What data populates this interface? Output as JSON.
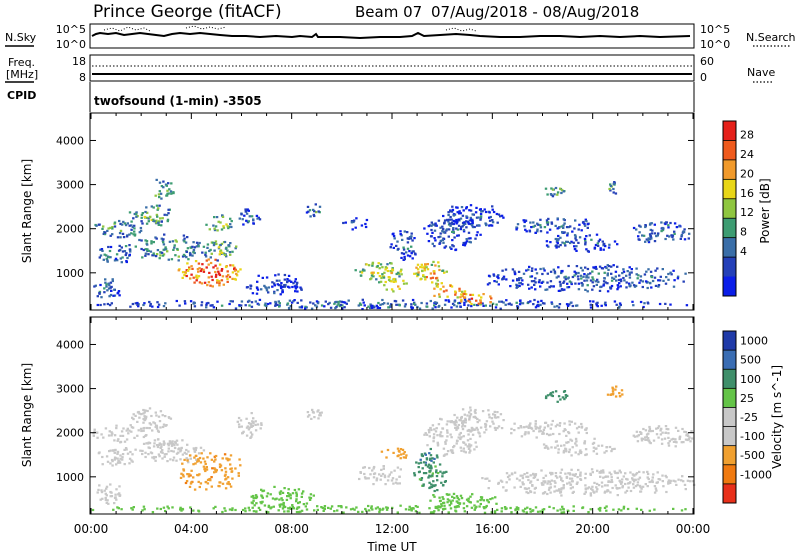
{
  "header": {
    "station": "Prince George (fitACF)",
    "beam": "Beam 07",
    "date_range": "07/Aug/2018 - 08/Aug/2018"
  },
  "noise_panel": {
    "left_label": "N.Sky",
    "right_label": "N.Search",
    "ticks_left": [
      "10^5",
      "10^0"
    ],
    "ticks_right": [
      "10^5",
      "10^0"
    ]
  },
  "freq_panel": {
    "left_label_1": "Freq.",
    "left_label_2": "[MHz]",
    "ticks_left": [
      "18",
      "8"
    ],
    "ticks_right": [
      "60",
      "0"
    ],
    "right_label": "Nave"
  },
  "cpid": {
    "label": "CPID",
    "value": "twofsound (1-min) -3505"
  },
  "power_panel": {
    "ylabel": "Slant Range [km]",
    "yticks": [
      "4000",
      "3000",
      "2000",
      "1000"
    ],
    "colorbar_label": "Power [dB]",
    "colorbar_ticks": [
      "28",
      "24",
      "20",
      "16",
      "12",
      "8",
      "4"
    ],
    "colors": [
      "#0b1ee8",
      "#2440b8",
      "#3a6ea8",
      "#3d9c72",
      "#8fc640",
      "#e8d617",
      "#f19a2b",
      "#ef5a1d",
      "#e5201a"
    ]
  },
  "velocity_panel": {
    "ylabel": "Slant Range [km]",
    "yticks": [
      "4000",
      "3000",
      "2000",
      "1000"
    ],
    "colorbar_label": "Velocity [m s^-1]",
    "colorbar_ticks": [
      "1000",
      "500",
      "100",
      "25",
      "-25",
      "-100",
      "-500",
      "-1000"
    ],
    "colors": [
      "#1f3aa8",
      "#3a6db3",
      "#3f8f6a",
      "#64c448",
      "#c8c8c8",
      "#c8c8c8",
      "#f0a030",
      "#f07a10",
      "#e8301a"
    ]
  },
  "x_axis": {
    "ticks": [
      "00:00",
      "04:00",
      "08:00",
      "12:00",
      "16:00",
      "20:00",
      "00:00"
    ],
    "label": "Time UT"
  },
  "chart_data": [
    {
      "type": "heatmap",
      "title": "Power [dB]",
      "xlabel": "Time UT",
      "ylabel": "Slant Range [km]",
      "xlim_hours": [
        0,
        24
      ],
      "ylim_km": [
        180,
        4600
      ],
      "clim": [
        0,
        30
      ],
      "regions": [
        {
          "t0": 0.0,
          "t1": 2.2,
          "r0": 1800,
          "r1": 2200,
          "v": 12
        },
        {
          "t0": 0.2,
          "t1": 1.8,
          "r0": 1250,
          "r1": 1700,
          "v": 10
        },
        {
          "t0": 0.0,
          "t1": 1.2,
          "r0": 400,
          "r1": 900,
          "v": 9
        },
        {
          "t0": 1.5,
          "t1": 3.2,
          "r0": 2000,
          "r1": 2600,
          "v": 14
        },
        {
          "t0": 2.3,
          "t1": 3.3,
          "r0": 2700,
          "r1": 3150,
          "v": 13
        },
        {
          "t0": 1.6,
          "t1": 4.5,
          "r0": 1300,
          "r1": 1900,
          "v": 13
        },
        {
          "t0": 3.4,
          "t1": 6.0,
          "r0": 700,
          "r1": 1350,
          "v": 26
        },
        {
          "t0": 4.3,
          "t1": 5.8,
          "r0": 1300,
          "r1": 1800,
          "v": 15
        },
        {
          "t0": 4.5,
          "t1": 5.6,
          "r0": 1950,
          "r1": 2350,
          "v": 16
        },
        {
          "t0": 5.8,
          "t1": 6.8,
          "r0": 2000,
          "r1": 2500,
          "v": 8
        },
        {
          "t0": 0.0,
          "t1": 24.0,
          "r0": 200,
          "r1": 420,
          "v": 9
        },
        {
          "t0": 6.0,
          "t1": 8.5,
          "r0": 500,
          "r1": 1000,
          "v": 6
        },
        {
          "t0": 8.5,
          "t1": 9.2,
          "r0": 2300,
          "r1": 2600,
          "v": 12
        },
        {
          "t0": 10.0,
          "t1": 11.0,
          "r0": 2000,
          "r1": 2300,
          "v": 7
        },
        {
          "t0": 10.5,
          "t1": 12.5,
          "r0": 800,
          "r1": 1300,
          "v": 18
        },
        {
          "t0": 11.5,
          "t1": 12.6,
          "r0": 600,
          "r1": 900,
          "v": 20
        },
        {
          "t0": 11.8,
          "t1": 13.0,
          "r0": 1300,
          "r1": 2000,
          "v": 8
        },
        {
          "t0": 12.8,
          "t1": 14.2,
          "r0": 700,
          "r1": 1300,
          "v": 21
        },
        {
          "t0": 13.4,
          "t1": 15.0,
          "r0": 450,
          "r1": 750,
          "v": 24
        },
        {
          "t0": 14.5,
          "t1": 16.2,
          "r0": 300,
          "r1": 550,
          "v": 25
        },
        {
          "t0": 13.2,
          "t1": 15.5,
          "r0": 1500,
          "r1": 2400,
          "v": 8
        },
        {
          "t0": 14.0,
          "t1": 16.5,
          "r0": 2000,
          "r1": 2600,
          "v": 7
        },
        {
          "t0": 15.5,
          "t1": 24.0,
          "r0": 600,
          "r1": 1200,
          "v": 9
        },
        {
          "t0": 16.5,
          "t1": 20.0,
          "r0": 1900,
          "r1": 2300,
          "v": 9
        },
        {
          "t0": 18.0,
          "t1": 21.0,
          "r0": 1500,
          "r1": 1900,
          "v": 8
        },
        {
          "t0": 18.0,
          "t1": 19.0,
          "r0": 2700,
          "r1": 3000,
          "v": 14
        },
        {
          "t0": 20.5,
          "t1": 21.2,
          "r0": 2800,
          "r1": 3100,
          "v": 12
        },
        {
          "t0": 21.5,
          "t1": 24.0,
          "r0": 1700,
          "r1": 2200,
          "v": 9
        }
      ]
    },
    {
      "type": "heatmap",
      "title": "Velocity [m s^-1]",
      "xlabel": "Time UT",
      "ylabel": "Slant Range [km]",
      "xlim_hours": [
        0,
        24
      ],
      "ylim_km": [
        180,
        4600
      ],
      "regions": [
        {
          "t0": 0.0,
          "t1": 2.2,
          "r0": 1800,
          "r1": 2200,
          "v": 0
        },
        {
          "t0": 0.2,
          "t1": 1.8,
          "r0": 1250,
          "r1": 1700,
          "v": 0
        },
        {
          "t0": 0.0,
          "t1": 1.2,
          "r0": 400,
          "r1": 900,
          "v": 0
        },
        {
          "t0": 1.5,
          "t1": 3.2,
          "r0": 2000,
          "r1": 2600,
          "v": 0
        },
        {
          "t0": 1.6,
          "t1": 4.5,
          "r0": 1300,
          "r1": 1900,
          "v": 0
        },
        {
          "t0": 3.4,
          "t1": 6.0,
          "r0": 700,
          "r1": 1600,
          "v": -350
        },
        {
          "t0": 5.8,
          "t1": 6.8,
          "r0": 1900,
          "r1": 2500,
          "v": 0
        },
        {
          "t0": 0.0,
          "t1": 24.0,
          "r0": 200,
          "r1": 380,
          "v": 60
        },
        {
          "t0": 6.0,
          "t1": 9.0,
          "r0": 300,
          "r1": 800,
          "v": 60
        },
        {
          "t0": 8.5,
          "t1": 9.2,
          "r0": 2300,
          "r1": 2600,
          "v": 0
        },
        {
          "t0": 10.5,
          "t1": 12.5,
          "r0": 800,
          "r1": 1300,
          "v": 0
        },
        {
          "t0": 11.5,
          "t1": 12.6,
          "r0": 1400,
          "r1": 1700,
          "v": -200
        },
        {
          "t0": 12.8,
          "t1": 14.2,
          "r0": 700,
          "r1": 1500,
          "v": 150
        },
        {
          "t0": 13.0,
          "t1": 13.8,
          "r0": 1200,
          "r1": 1700,
          "v": 400
        },
        {
          "t0": 13.4,
          "t1": 16.2,
          "r0": 300,
          "r1": 700,
          "v": 60
        },
        {
          "t0": 13.2,
          "t1": 15.5,
          "r0": 1500,
          "r1": 2400,
          "v": 0
        },
        {
          "t0": 14.0,
          "t1": 16.5,
          "r0": 2000,
          "r1": 2600,
          "v": 0
        },
        {
          "t0": 15.5,
          "t1": 24.0,
          "r0": 600,
          "r1": 1200,
          "v": 0
        },
        {
          "t0": 16.5,
          "t1": 20.0,
          "r0": 1900,
          "r1": 2300,
          "v": 0
        },
        {
          "t0": 18.0,
          "t1": 21.0,
          "r0": 1500,
          "r1": 1900,
          "v": 0
        },
        {
          "t0": 18.0,
          "t1": 19.0,
          "r0": 2700,
          "r1": 3000,
          "v": 200
        },
        {
          "t0": 20.5,
          "t1": 21.2,
          "r0": 2800,
          "r1": 3100,
          "v": -300
        },
        {
          "t0": 21.5,
          "t1": 24.0,
          "r0": 1700,
          "r1": 2200,
          "v": 0
        }
      ]
    }
  ]
}
